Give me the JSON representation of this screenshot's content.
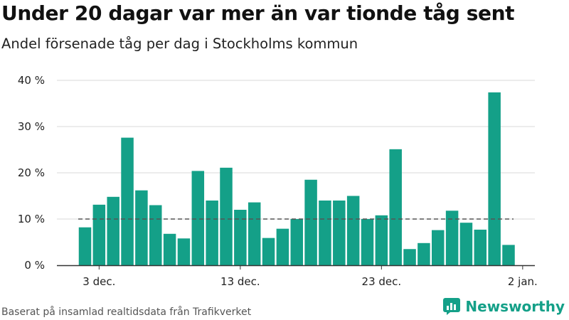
{
  "header": {
    "title": "Under 20 dagar var mer än var tionde tåg sent",
    "subtitle": "Andel försenade tåg per dag i Stockholms kommun"
  },
  "footer": {
    "source": "Baserat på insamlad realtidsdata från Trafikverket",
    "brand": "Newsworthy"
  },
  "colors": {
    "bar": "#14a088",
    "reference_line": "#555555",
    "grid": "#d9d9d9",
    "brand": "#14a088"
  },
  "chart_data": {
    "type": "bar",
    "x_tick_labels": [
      "3 dec.",
      "13 dec.",
      "23 dec.",
      "2 jan."
    ],
    "y_tick_labels": [
      "0 %",
      "10 %",
      "20 %",
      "30 %",
      "40 %"
    ],
    "ylim": [
      0,
      40
    ],
    "grid": true,
    "reference_line": 10,
    "dates": [
      "2019-12-02",
      "2019-12-03",
      "2019-12-04",
      "2019-12-05",
      "2019-12-06",
      "2019-12-07",
      "2019-12-08",
      "2019-12-09",
      "2019-12-10",
      "2019-12-11",
      "2019-12-12",
      "2019-12-13",
      "2019-12-14",
      "2019-12-15",
      "2019-12-16",
      "2019-12-17",
      "2019-12-18",
      "2019-12-19",
      "2019-12-20",
      "2019-12-21",
      "2019-12-22",
      "2019-12-23",
      "2019-12-24",
      "2019-12-25",
      "2019-12-26",
      "2019-12-27",
      "2019-12-28",
      "2019-12-29",
      "2019-12-30",
      "2019-12-31",
      "2020-01-01"
    ],
    "values": [
      8.2,
      13.1,
      14.8,
      27.6,
      16.2,
      13.0,
      6.8,
      5.8,
      20.4,
      14.0,
      21.1,
      12.0,
      13.6,
      5.9,
      7.9,
      10.0,
      18.5,
      14.0,
      14.0,
      15.0,
      10.0,
      10.8,
      25.1,
      3.5,
      4.8,
      7.6,
      11.8,
      9.2,
      7.7,
      37.4,
      4.4
    ]
  }
}
